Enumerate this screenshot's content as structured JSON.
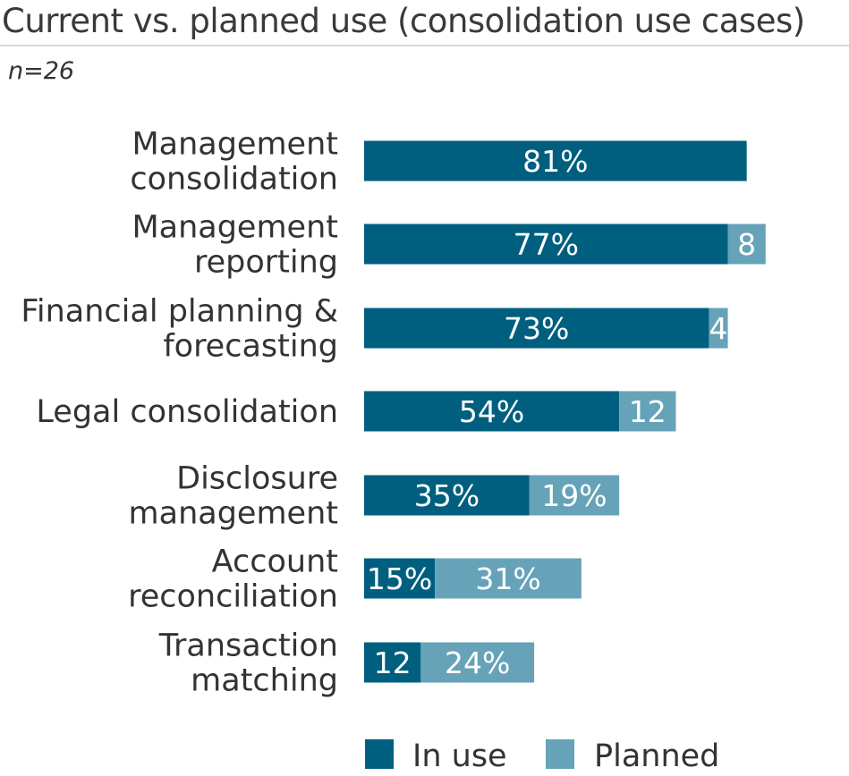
{
  "title": "Current vs. planned use (consolidation use cases)",
  "subtitle": "n=26",
  "colors": {
    "in_use": "#005f7f",
    "planned": "#66a3b8"
  },
  "chart_data": {
    "type": "bar",
    "orientation": "horizontal",
    "stacked": true,
    "categories": [
      "Management consolidation",
      "Management reporting",
      "Financial planning & forecasting",
      "Legal consolidation",
      "Disclosure management",
      "Account reconciliation",
      "Transaction matching"
    ],
    "category_lines": [
      [
        "Management",
        "consolidation"
      ],
      [
        "Management",
        "reporting"
      ],
      [
        "Financial planning &",
        "forecasting"
      ],
      [
        "Legal consolidation"
      ],
      [
        "Disclosure",
        "management"
      ],
      [
        "Account",
        "reconciliation"
      ],
      [
        "Transaction",
        "matching"
      ]
    ],
    "series": [
      {
        "name": "In use",
        "values": [
          81,
          77,
          73,
          54,
          35,
          15,
          12
        ],
        "labels": [
          "81%",
          "77%",
          "73%",
          "54%",
          "35%",
          "15%",
          "12"
        ]
      },
      {
        "name": "Planned",
        "values": [
          0,
          8,
          4,
          12,
          19,
          31,
          24
        ],
        "labels": [
          "",
          "8",
          "4",
          "12",
          "19%",
          "31%",
          "24%"
        ]
      }
    ],
    "unit": "%",
    "legend_position": "bottom",
    "grid": false
  }
}
